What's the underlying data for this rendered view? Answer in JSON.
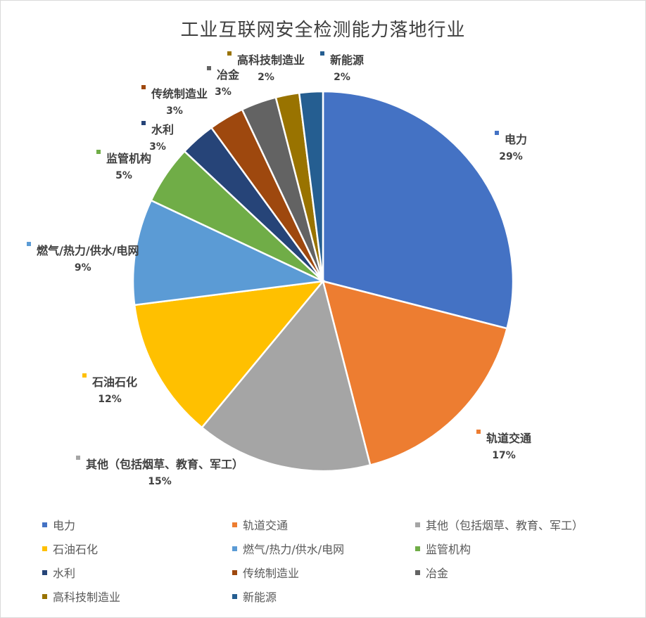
{
  "chart_data": {
    "type": "pie",
    "title": "工业互联网安全检测能力落地行业",
    "start_angle_deg": 0,
    "direction": "clockwise",
    "slices": [
      {
        "name": "电力",
        "value": 29,
        "label": "29%",
        "color": "#4472C4"
      },
      {
        "name": "轨道交通",
        "value": 17,
        "label": "17%",
        "color": "#ED7D31"
      },
      {
        "name": "其他（包括烟草、教育、军工）",
        "value": 15,
        "label": "15%",
        "color": "#A5A5A5"
      },
      {
        "name": "石油石化",
        "value": 12,
        "label": "12%",
        "color": "#FFC000"
      },
      {
        "name": "燃气/热力/供水/电网",
        "value": 9,
        "label": "9%",
        "color": "#5B9BD5"
      },
      {
        "name": "监管机构",
        "value": 5,
        "label": "5%",
        "color": "#70AD47"
      },
      {
        "name": "水利",
        "value": 3,
        "label": "3%",
        "color": "#264478"
      },
      {
        "name": "传统制造业",
        "value": 3,
        "label": "3%",
        "color": "#9E480E"
      },
      {
        "name": "冶金",
        "value": 3,
        "label": "3%",
        "color": "#636363"
      },
      {
        "name": "高科技制造业",
        "value": 2,
        "label": "2%",
        "color": "#997300"
      },
      {
        "name": "新能源",
        "value": 2,
        "label": "2%",
        "color": "#255E91"
      }
    ],
    "legend": "bottom"
  }
}
